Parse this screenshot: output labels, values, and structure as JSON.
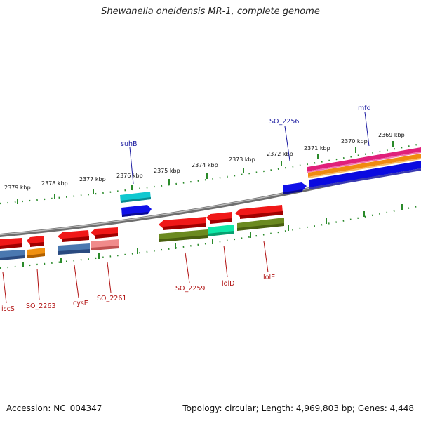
{
  "title": "Shewanella oneidensis MR-1, complete genome",
  "footer": {
    "accession": "Accession: NC_004347",
    "topology": "Topology: circular; Length: 4,969,803 bp; Genes: 4,448"
  },
  "colors": {
    "backbone": "#8a8a8a",
    "ticks": "#2a8a2a",
    "label_top": "#1a1aa0",
    "label_bottom": "#b01010"
  },
  "kbp_labels": [
    "2379 kbp",
    "2378 kbp",
    "2377 kbp",
    "2376 kbp",
    "2375 kbp",
    "2374 kbp",
    "2373 kbp",
    "2372 kbp",
    "2371 kbp",
    "2370 kbp",
    "2369 kbp"
  ],
  "top_gene_labels": [
    "suhB",
    "SO_2256",
    "mfd"
  ],
  "bottom_gene_labels": [
    "iscS",
    "SO_2263",
    "cysE",
    "SO_2261",
    "SO_2259",
    "lolD",
    "lolE"
  ]
}
